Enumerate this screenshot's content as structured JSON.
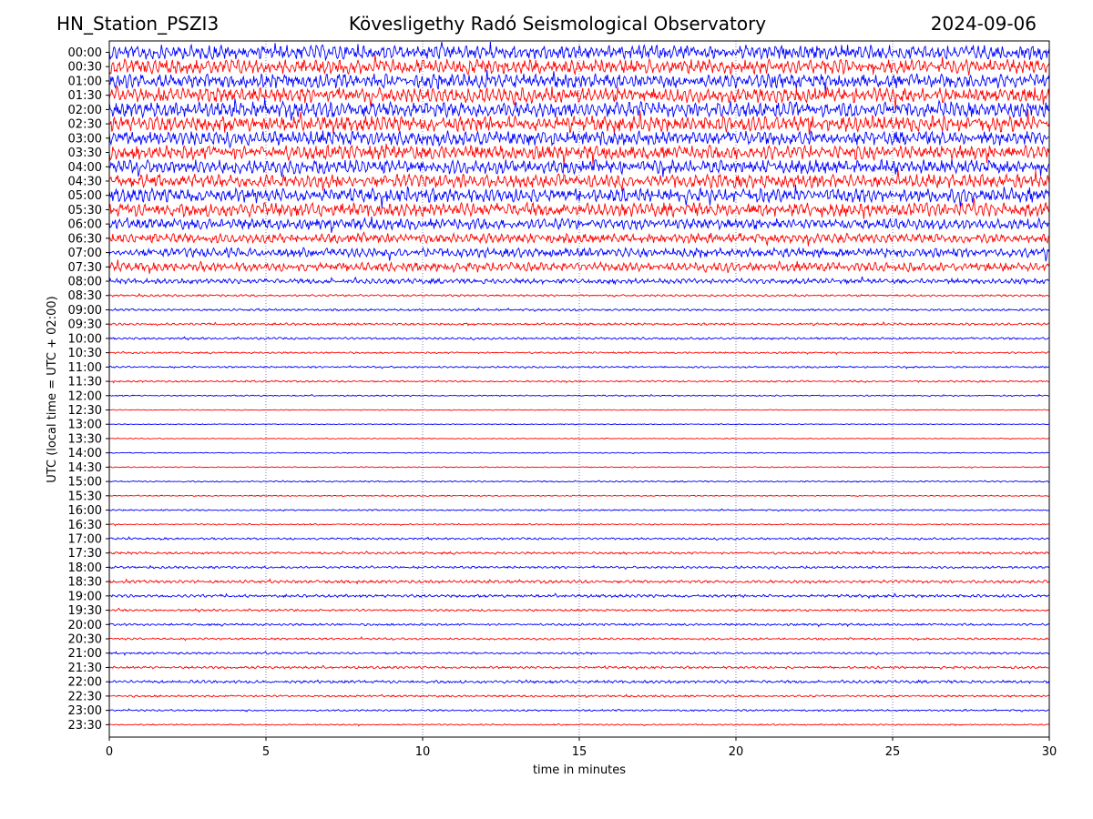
{
  "header": {
    "station": "HN_Station_PSZI3",
    "observatory": "Kövesligethy Radó Seismological Observatory",
    "date": "2024-09-06"
  },
  "colors": {
    "trace_a": "#0000ff",
    "trace_b": "#ff0000",
    "axis": "#000000",
    "grid": "#2a2a8a"
  },
  "chart_data": {
    "type": "line",
    "xlabel": "time in minutes",
    "ylabel": "UTC (local time = UTC + 02:00)",
    "xlim": [
      0,
      30
    ],
    "xticks": [
      0,
      5,
      10,
      15,
      20,
      25,
      30
    ],
    "grid_x": true,
    "row_labels": [
      "00:00",
      "00:30",
      "01:00",
      "01:30",
      "02:00",
      "02:30",
      "03:00",
      "03:30",
      "04:00",
      "04:30",
      "05:00",
      "05:30",
      "06:00",
      "06:30",
      "07:00",
      "07:30",
      "08:00",
      "08:30",
      "09:00",
      "09:30",
      "10:00",
      "10:30",
      "11:00",
      "11:30",
      "12:00",
      "12:30",
      "13:00",
      "13:30",
      "14:00",
      "14:30",
      "15:00",
      "15:30",
      "16:00",
      "16:30",
      "17:00",
      "17:30",
      "18:00",
      "18:30",
      "19:00",
      "19:30",
      "20:00",
      "20:30",
      "21:00",
      "21:30",
      "22:00",
      "22:30",
      "23:00",
      "23:30"
    ],
    "row_colors": [
      "trace_a",
      "trace_b"
    ],
    "relative_amplitude": [
      1.0,
      1.0,
      1.0,
      1.05,
      1.05,
      1.1,
      1.0,
      1.0,
      0.95,
      0.95,
      0.95,
      0.95,
      0.75,
      0.65,
      0.65,
      0.6,
      0.35,
      0.14,
      0.14,
      0.16,
      0.15,
      0.12,
      0.12,
      0.12,
      0.09,
      0.06,
      0.06,
      0.06,
      0.07,
      0.07,
      0.1,
      0.08,
      0.1,
      0.1,
      0.14,
      0.16,
      0.16,
      0.2,
      0.2,
      0.15,
      0.15,
      0.14,
      0.14,
      0.16,
      0.2,
      0.14,
      0.12,
      0.1
    ]
  }
}
